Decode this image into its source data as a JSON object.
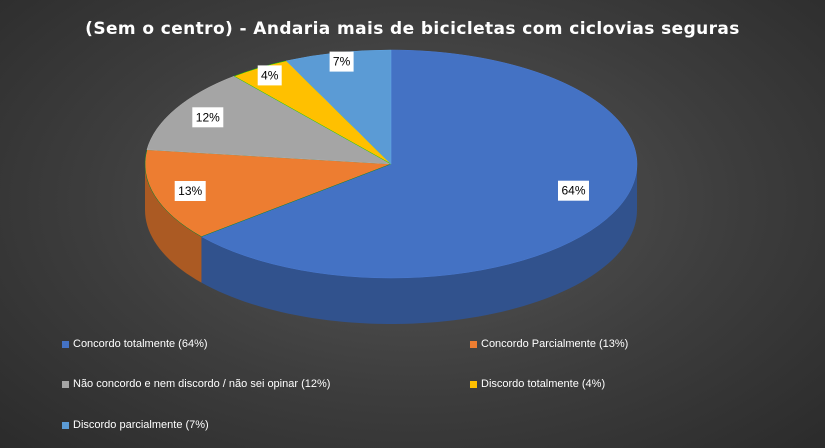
{
  "chart_data": {
    "type": "pie",
    "title": "(Sem o centro) - Andaria mais de bicicletas com ciclovias seguras",
    "slices": [
      {
        "label": "Concordo totalmente",
        "value": 64,
        "data_label": "64%",
        "legend": "Concordo totalmente (64%)",
        "color": "#4472c4"
      },
      {
        "label": "Concordo Parcialmente",
        "value": 13,
        "data_label": "13%",
        "legend": "Concordo Parcialmente (13%)",
        "color": "#ed7d31"
      },
      {
        "label": "Não concordo e nem discordo / não sei opinar",
        "value": 12,
        "data_label": "12%",
        "legend": "Não concordo e nem discordo / não sei opinar (12%)",
        "color": "#a5a5a5"
      },
      {
        "label": "Discordo totalmente",
        "value": 4,
        "data_label": "4%",
        "legend": "Discordo totalmente (4%)",
        "color": "#ffc000"
      },
      {
        "label": "Discordo parcialmente",
        "value": 7,
        "data_label": "7%",
        "legend": "Discordo parcialmente (7%)",
        "color": "#5b9bd5"
      }
    ],
    "legend_position": "bottom",
    "style": "3d-pie"
  }
}
